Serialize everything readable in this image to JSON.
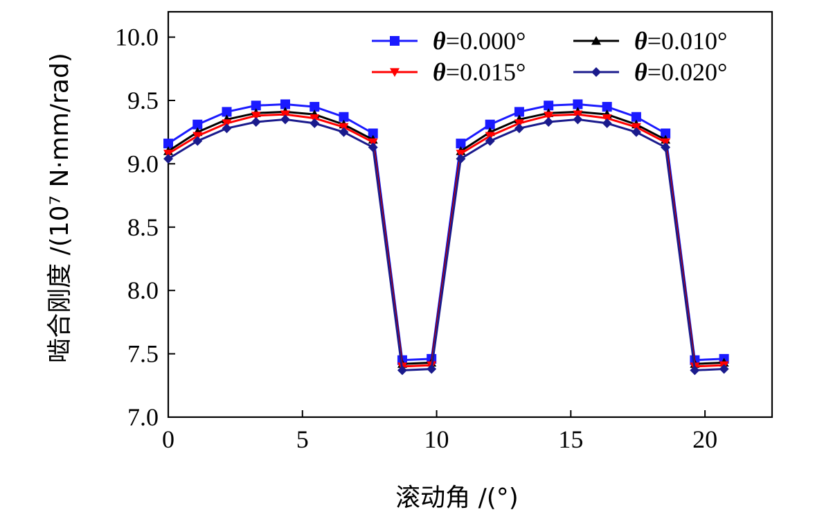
{
  "chart_data": {
    "type": "line",
    "xlabel": "滚动角 /(°)",
    "ylabel": "啮合刚度 /(10⁷ N·mm/rad)",
    "xlim": [
      0,
      22.5
    ],
    "ylim": [
      7.0,
      10.2
    ],
    "x_ticks": [
      "0",
      "5",
      "10",
      "15",
      "20"
    ],
    "y_ticks": [
      "7.0",
      "7.5",
      "8.0",
      "8.5",
      "9.0",
      "9.5",
      "10.0"
    ],
    "x": [
      0,
      1.09,
      2.18,
      3.27,
      4.36,
      5.45,
      6.54,
      7.63,
      8.72,
      9.81,
      10.9,
      11.99,
      13.08,
      14.17,
      15.26,
      16.35,
      17.44,
      18.53,
      19.62,
      20.71
    ],
    "series": [
      {
        "name": "θ=0.000°",
        "color": "#1a1aff",
        "marker": "square",
        "values": [
          9.16,
          9.31,
          9.41,
          9.46,
          9.47,
          9.45,
          9.37,
          9.24,
          7.45,
          7.46,
          9.16,
          9.31,
          9.41,
          9.46,
          9.47,
          9.45,
          9.37,
          9.24,
          7.45,
          7.46
        ]
      },
      {
        "name": "θ=0.010°",
        "color": "#000000",
        "marker": "triangle-up",
        "values": [
          9.1,
          9.25,
          9.35,
          9.4,
          9.41,
          9.39,
          9.31,
          9.19,
          7.42,
          7.43,
          9.1,
          9.25,
          9.35,
          9.4,
          9.41,
          9.39,
          9.31,
          9.19,
          7.42,
          7.43
        ]
      },
      {
        "name": "θ=0.015°",
        "color": "#ff0000",
        "marker": "triangle-down",
        "values": [
          9.08,
          9.22,
          9.32,
          9.38,
          9.39,
          9.36,
          9.29,
          9.17,
          7.4,
          7.41,
          9.08,
          9.22,
          9.32,
          9.38,
          9.39,
          9.36,
          9.29,
          9.17,
          7.4,
          7.41
        ]
      },
      {
        "name": "θ=0.020°",
        "color": "#1a1a8c",
        "marker": "diamond",
        "values": [
          9.04,
          9.18,
          9.28,
          9.33,
          9.35,
          9.32,
          9.25,
          9.13,
          7.37,
          7.38,
          9.04,
          9.18,
          9.28,
          9.33,
          9.35,
          9.32,
          9.25,
          9.13,
          7.37,
          7.38
        ]
      }
    ],
    "legend": {
      "position": "top-right",
      "columns": 2,
      "entries": [
        {
          "theta": "θ",
          "rest": "=0.000°"
        },
        {
          "theta": "θ",
          "rest": "=0.010°"
        },
        {
          "theta": "θ",
          "rest": "=0.015°"
        },
        {
          "theta": "θ",
          "rest": "=0.020°"
        }
      ]
    },
    "grid": false
  }
}
